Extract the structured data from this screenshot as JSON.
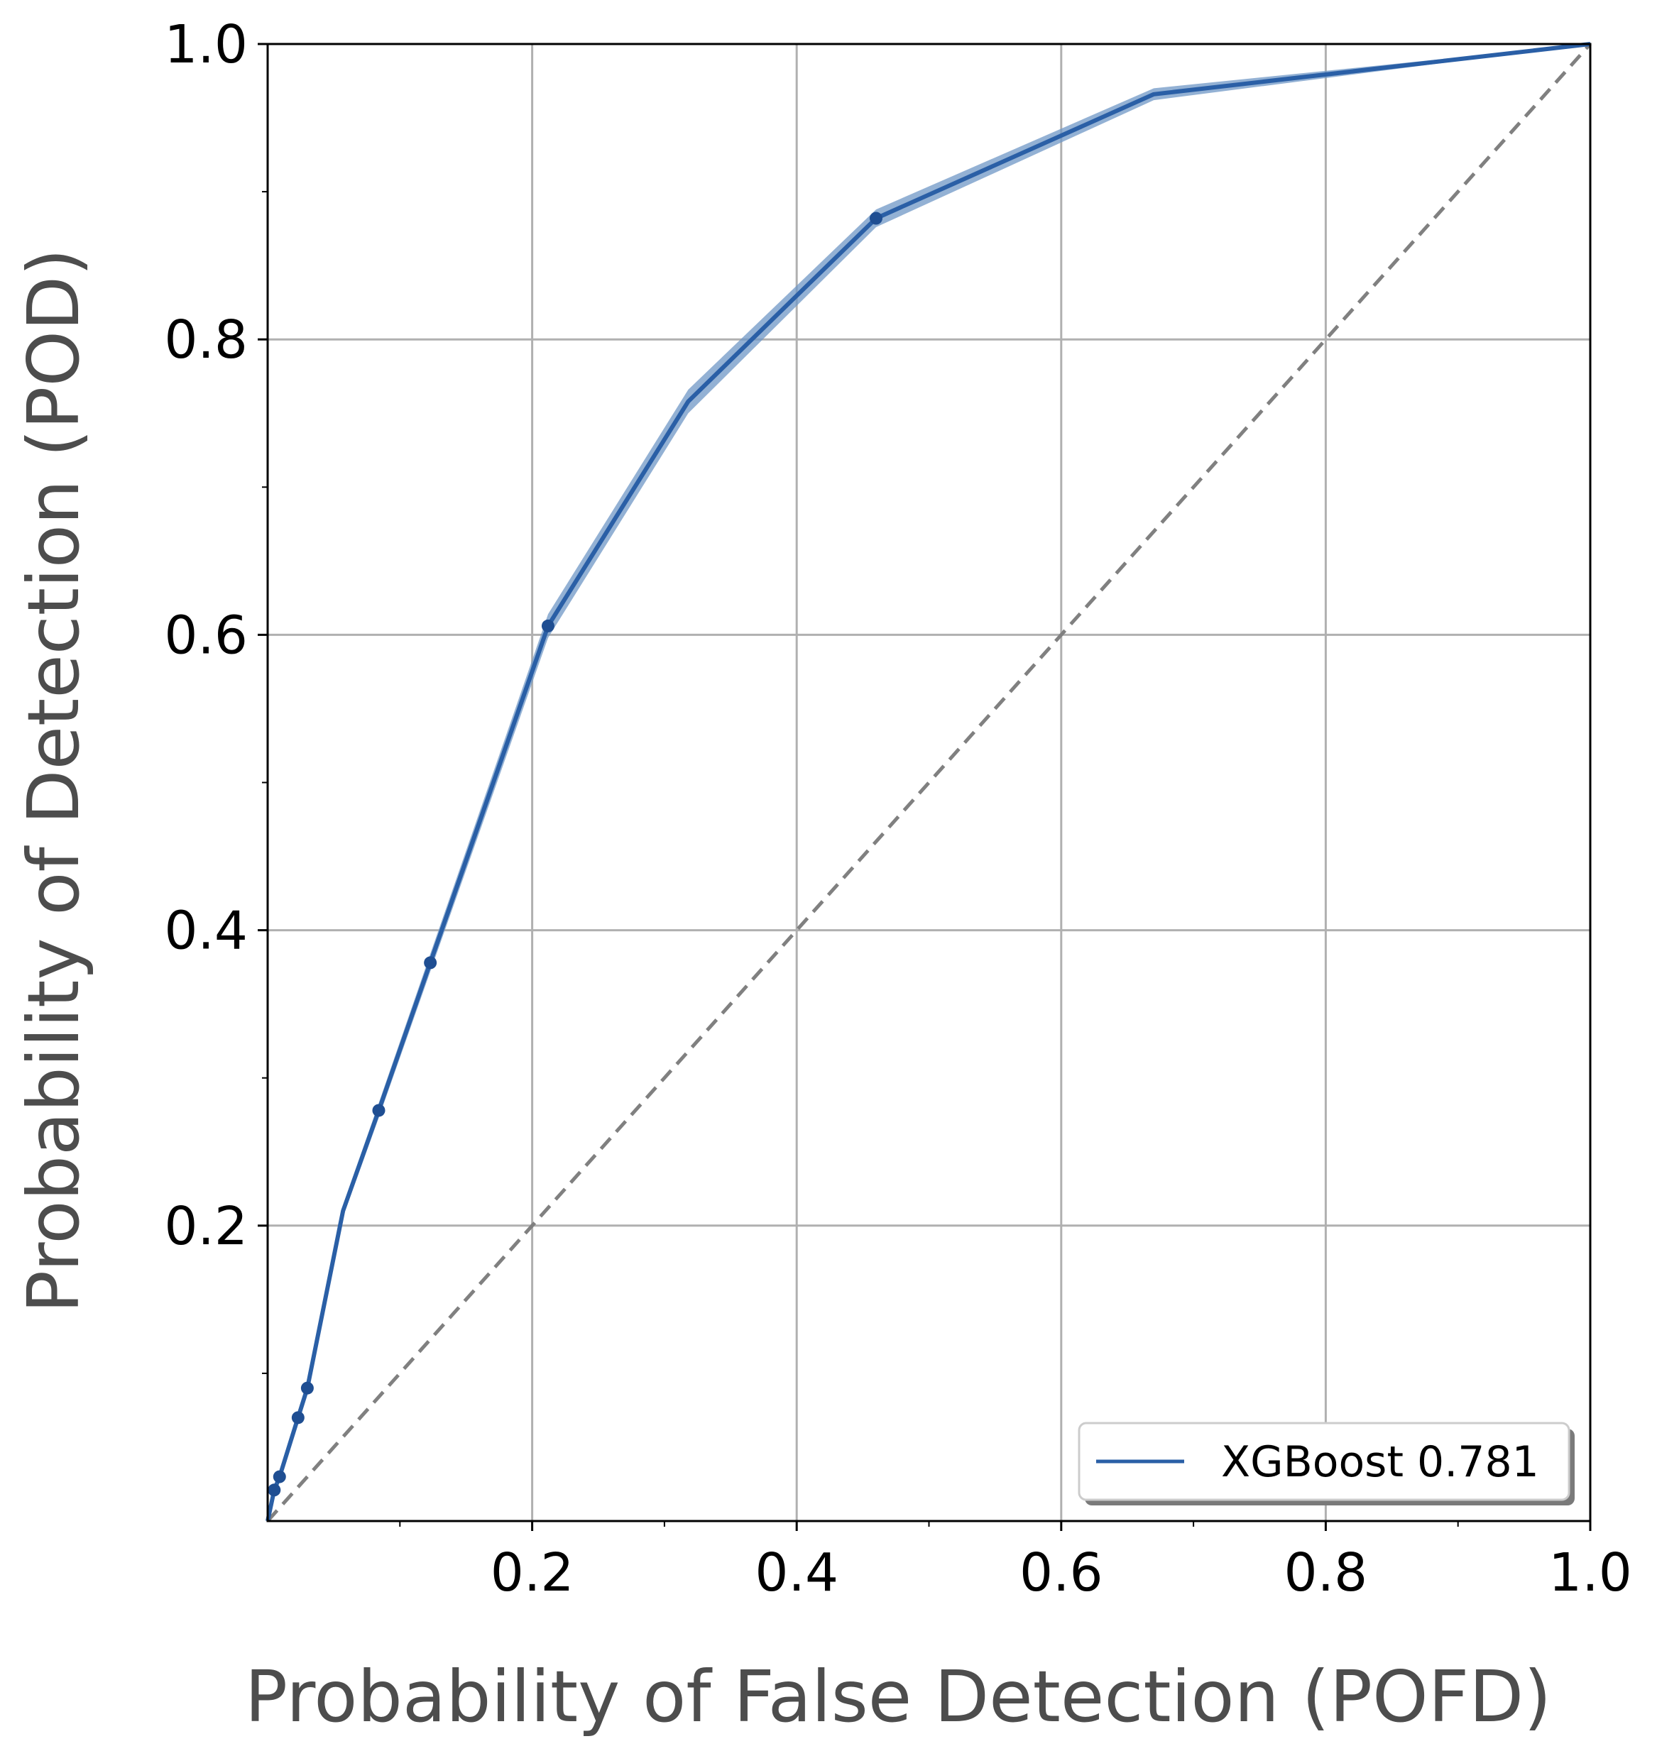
{
  "chart_data": {
    "type": "line",
    "title": "",
    "xlabel": "Probability of False Detection (POFD)",
    "ylabel": "Probability of Detection (POD)",
    "xlim": [
      0,
      1
    ],
    "ylim": [
      0,
      1
    ],
    "x_ticks": [
      {
        "value": 0.2,
        "label": "0.2"
      },
      {
        "value": 0.4,
        "label": "0.4"
      },
      {
        "value": 0.6,
        "label": "0.6"
      },
      {
        "value": 0.8,
        "label": "0.8"
      },
      {
        "value": 1.0,
        "label": "1.0"
      }
    ],
    "y_ticks": [
      {
        "value": 0.2,
        "label": "0.2"
      },
      {
        "value": 0.4,
        "label": "0.4"
      },
      {
        "value": 0.6,
        "label": "0.6"
      },
      {
        "value": 0.8,
        "label": "0.8"
      },
      {
        "value": 1.0,
        "label": "1.0"
      }
    ],
    "x_minor_ticks": [
      0.1,
      0.3,
      0.5,
      0.7,
      0.9
    ],
    "y_minor_ticks": [
      0.1,
      0.3,
      0.5,
      0.7,
      0.9
    ],
    "grid": true,
    "legend": {
      "position": "lower-right",
      "entries": [
        "XGBoost 0.781"
      ]
    },
    "reference_line": {
      "style": "dashed",
      "color": "#808080",
      "from": [
        0,
        0
      ],
      "to": [
        1,
        1
      ]
    },
    "series": [
      {
        "name": "XGBoost 0.781",
        "color": "#2a5fa6",
        "band_color": "#6f97c6",
        "points": [
          {
            "x": 0.0,
            "y": 0.0,
            "band": 0.0
          },
          {
            "x": 0.005,
            "y": 0.021,
            "band": 0.002,
            "marker": true
          },
          {
            "x": 0.009,
            "y": 0.03,
            "band": 0.002,
            "marker": true
          },
          {
            "x": 0.023,
            "y": 0.07,
            "band": 0.003,
            "marker": true
          },
          {
            "x": 0.03,
            "y": 0.09,
            "band": 0.003,
            "marker": true
          },
          {
            "x": 0.057,
            "y": 0.21,
            "band": 0.004,
            "marker": false
          },
          {
            "x": 0.084,
            "y": 0.278,
            "band": 0.005,
            "marker": true
          },
          {
            "x": 0.123,
            "y": 0.378,
            "band": 0.006,
            "marker": true
          },
          {
            "x": 0.212,
            "y": 0.606,
            "band": 0.008,
            "marker": true
          },
          {
            "x": 0.318,
            "y": 0.758,
            "band": 0.008,
            "marker": false
          },
          {
            "x": 0.46,
            "y": 0.882,
            "band": 0.006,
            "marker": true
          },
          {
            "x": 0.67,
            "y": 0.966,
            "band": 0.004,
            "marker": false
          },
          {
            "x": 1.0,
            "y": 1.0,
            "band": 0.0,
            "marker": false
          }
        ]
      }
    ]
  }
}
